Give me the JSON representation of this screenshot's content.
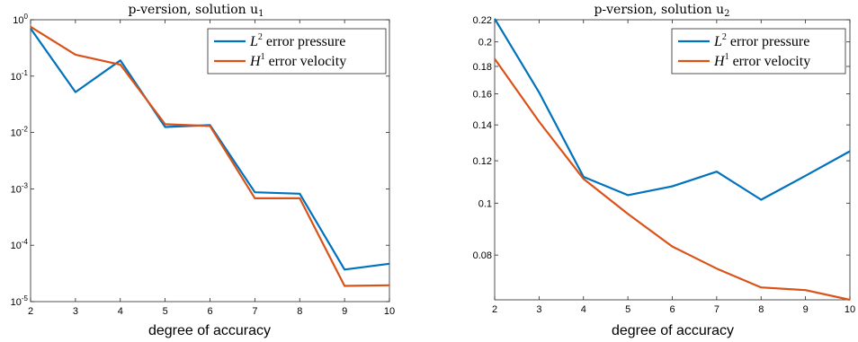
{
  "chart_data": [
    {
      "type": "line",
      "title": "p-version, solution u",
      "title_sub": "1",
      "xlabel": "degree of accuracy",
      "ylabel": "",
      "yscale": "log",
      "x": [
        2,
        3,
        4,
        5,
        6,
        7,
        8,
        9,
        10
      ],
      "xlim": [
        2,
        10
      ],
      "ylim": [
        1e-05,
        1
      ],
      "xticks": [
        "2",
        "3",
        "4",
        "5",
        "6",
        "7",
        "8",
        "9",
        "10"
      ],
      "yticks": [
        {
          "value": 1,
          "base": "10",
          "exp": "0"
        },
        {
          "value": 0.1,
          "base": "10",
          "exp": "-1"
        },
        {
          "value": 0.01,
          "base": "10",
          "exp": "-2"
        },
        {
          "value": 0.001,
          "base": "10",
          "exp": "-3"
        },
        {
          "value": 0.0001,
          "base": "10",
          "exp": "-4"
        },
        {
          "value": 1e-05,
          "base": "10",
          "exp": "-5"
        }
      ],
      "grid": false,
      "legend_position": "top-right",
      "series": [
        {
          "name_base": "L",
          "name_sup": "2",
          "name_rest": " error pressure",
          "color": "#0072BD",
          "values": [
            0.7,
            0.052,
            0.19,
            0.0125,
            0.0135,
            0.00087,
            0.00082,
            3.7e-05,
            4.7e-05
          ]
        },
        {
          "name_base": "H",
          "name_sup": "1",
          "name_rest": " error velocity",
          "color": "#D95319",
          "values": [
            0.75,
            0.24,
            0.16,
            0.014,
            0.013,
            0.00068,
            0.00068,
            1.9e-05,
            1.95e-05
          ]
        }
      ]
    },
    {
      "type": "line",
      "title": "p-version, solution u",
      "title_sub": "2",
      "xlabel": "degree of accuracy",
      "ylabel": "",
      "yscale": "log",
      "x": [
        2,
        3,
        4,
        5,
        6,
        7,
        8,
        9,
        10
      ],
      "xlim": [
        2,
        10
      ],
      "ylim": [
        0.066,
        0.22
      ],
      "xticks": [
        "2",
        "3",
        "4",
        "5",
        "6",
        "7",
        "8",
        "9",
        "10"
      ],
      "yticks": [
        {
          "value": 0.22,
          "label": "0.22"
        },
        {
          "value": 0.2,
          "label": "0.2"
        },
        {
          "value": 0.18,
          "label": "0.18"
        },
        {
          "value": 0.16,
          "label": "0.16"
        },
        {
          "value": 0.14,
          "label": "0.14"
        },
        {
          "value": 0.12,
          "label": "0.12"
        },
        {
          "value": 0.1,
          "label": "0.1"
        },
        {
          "value": 0.08,
          "label": "0.08"
        }
      ],
      "grid": false,
      "legend_position": "top-right",
      "series": [
        {
          "name_base": "L",
          "name_sup": "2",
          "name_rest": " error pressure",
          "color": "#0072BD",
          "values": [
            0.221,
            0.161,
            0.112,
            0.1035,
            0.1075,
            0.1145,
            0.1015,
            0.1125,
            0.125
          ]
        },
        {
          "name_base": "H",
          "name_sup": "1",
          "name_rest": " error velocity",
          "color": "#D95319",
          "values": [
            0.186,
            0.142,
            0.111,
            0.0955,
            0.083,
            0.0755,
            0.0696,
            0.0688,
            0.066
          ]
        }
      ]
    }
  ]
}
